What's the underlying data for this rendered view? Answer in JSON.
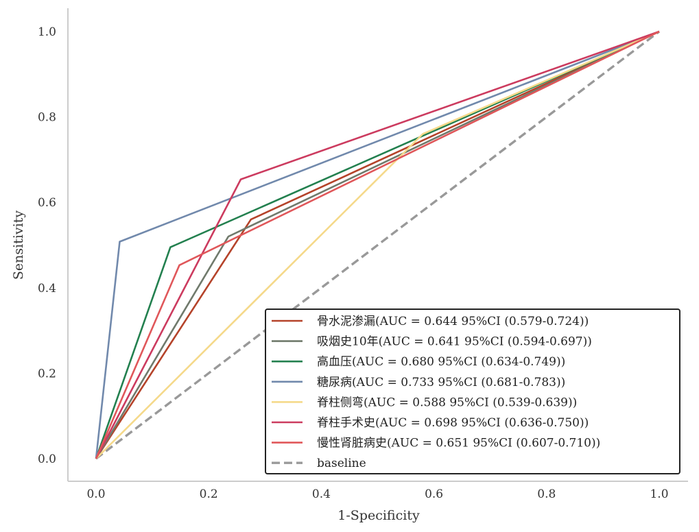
{
  "chart_data": {
    "type": "line",
    "title": "",
    "xlabel": "1-Specificity",
    "ylabel": "Sensitivity",
    "xlim": [
      -0.05,
      1.05
    ],
    "ylim": [
      -0.05,
      1.05
    ],
    "x_ticks": [
      "0.0",
      "0.2",
      "0.4",
      "0.6",
      "0.8",
      "1.0"
    ],
    "y_ticks": [
      "0.0",
      "0.2",
      "0.4",
      "0.6",
      "0.8",
      "1.0"
    ],
    "grid": false,
    "legend_position": "lower-right",
    "series": [
      {
        "name": "骨水泥渗漏(AUC = 0.644 95%CI (0.579-0.724))",
        "color": "#b5432a",
        "style": "solid",
        "x": [
          0,
          0.275,
          1
        ],
        "y": [
          0,
          0.56,
          1
        ]
      },
      {
        "name": "吸烟史10年(AUC = 0.641 95%CI (0.594-0.697))",
        "color": "#707a6c",
        "style": "solid",
        "x": [
          0,
          0.235,
          1
        ],
        "y": [
          0,
          0.52,
          1
        ]
      },
      {
        "name": "高血压(AUC = 0.680 95%CI (0.634-0.749))",
        "color": "#23804f",
        "style": "solid",
        "x": [
          0,
          0.132,
          1
        ],
        "y": [
          0,
          0.495,
          1
        ]
      },
      {
        "name": "糖尿病(AUC = 0.733 95%CI (0.681-0.783))",
        "color": "#7189ac",
        "style": "solid",
        "x": [
          0,
          0.042,
          1
        ],
        "y": [
          0,
          0.508,
          1
        ]
      },
      {
        "name": "脊柱侧弯(AUC = 0.588 95%CI (0.539-0.639))",
        "color": "#f5d98a",
        "style": "solid",
        "x": [
          0,
          0.58,
          1
        ],
        "y": [
          0,
          0.76,
          1
        ]
      },
      {
        "name": "脊柱手术史(AUC = 0.698 95%CI (0.636-0.750))",
        "color": "#cc3b5f",
        "style": "solid",
        "x": [
          0,
          0.257,
          1
        ],
        "y": [
          0,
          0.654,
          1
        ]
      },
      {
        "name": "慢性肾脏病史(AUC = 0.651 95%CI (0.607-0.710))",
        "color": "#e0575a",
        "style": "solid",
        "x": [
          0,
          0.148,
          1
        ],
        "y": [
          0,
          0.453,
          1
        ]
      },
      {
        "name": "baseline",
        "color": "#999999",
        "style": "dashed",
        "x": [
          0,
          1
        ],
        "y": [
          0,
          1
        ]
      }
    ]
  }
}
